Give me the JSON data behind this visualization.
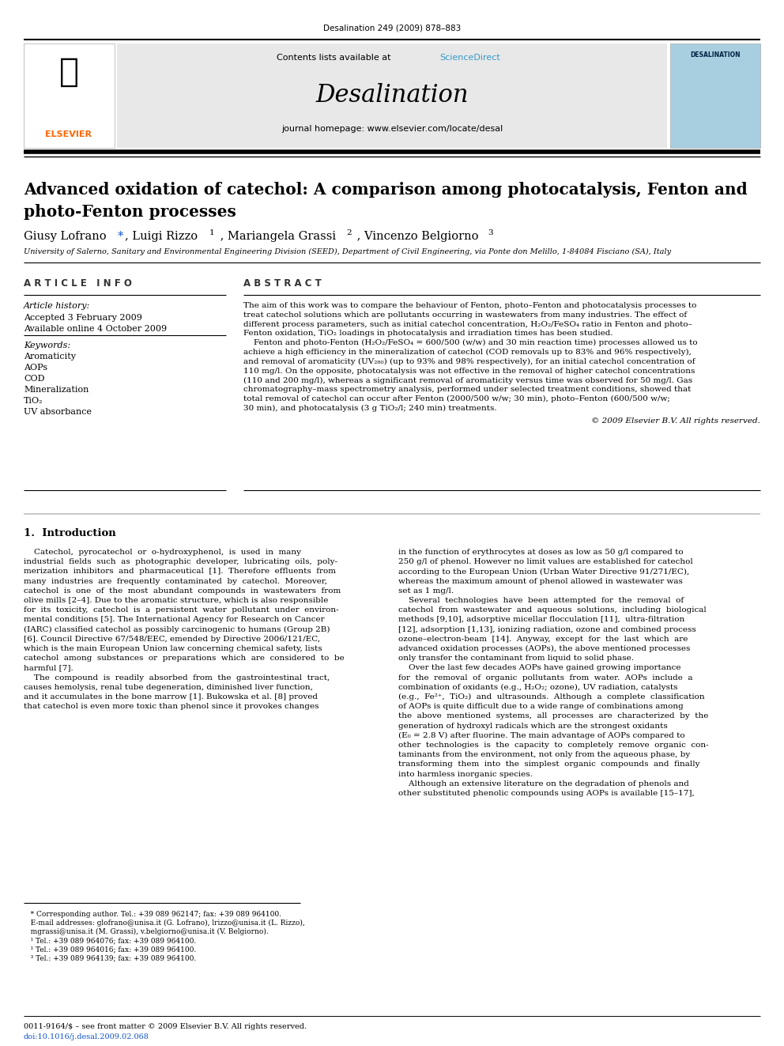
{
  "page_width": 9.92,
  "page_height": 13.23,
  "bg_color": "#ffffff",
  "journal_ref": "Desalination 249 (2009) 878–883",
  "header_bg": "#e8e8e8",
  "sciencedirect_color": "#3399cc",
  "journal_name": "Desalination",
  "journal_homepage": "journal homepage: www.elsevier.com/locate/desal",
  "title_line1": "Advanced oxidation of catechol: A comparison among photocatalysis, Fenton and",
  "title_line2": "photo-Fenton processes",
  "affiliation": "University of Salerno, Sanitary and Environmental Engineering Division (SEED), Department of Civil Engineering, via Ponte don Melillo, 1-84084 Fisciano (SA), Italy",
  "article_info_header": "A R T I C L E   I N F O",
  "abstract_header": "A B S T R A C T",
  "article_history_label": "Article history:",
  "accepted": "Accepted 3 February 2009",
  "available": "Available online 4 October 2009",
  "keywords_label": "Keywords:",
  "keywords": [
    "Aromaticity",
    "AOPs",
    "COD",
    "Mineralization",
    "TiO₂",
    "UV absorbance"
  ],
  "copyright": "© 2009 Elsevier B.V. All rights reserved.",
  "intro_header": "1.  Introduction",
  "footnote1": "   * Corresponding author. Tel.: +39 089 962147; fax: +39 089 964100.",
  "footnote2": "   E-mail addresses: glofrano@unisa.it (G. Lofrano), lrizzo@unisa.it (L. Rizzo),",
  "footnote2b": "   mgrassi@unisa.it (M. Grassi), v.belgiorno@unisa.it (V. Belgiorno).",
  "footnote3": "   ¹ Tel.: +39 089 964076; fax: +39 089 964100.",
  "footnote4": "   ¹ Tel.: +39 089 964016; fax: +39 089 964100.",
  "footnote5": "   ³ Tel.: +39 089 964139; fax: +39 089 964100.",
  "bottom_line1": "0011-9164/$ – see front matter © 2009 Elsevier B.V. All rights reserved.",
  "bottom_line2": "doi:10.1016/j.desal.2009.02.068",
  "elsevier_color": "#FF6600",
  "abstract_lines": [
    "The aim of this work was to compare the behaviour of Fenton, photo–Fenton and photocatalysis processes to",
    "treat catechol solutions which are pollutants occurring in wastewaters from many industries. The effect of",
    "different process parameters, such as initial catechol concentration, H₂O₂/FeSO₄ ratio in Fenton and photo–",
    "Fenton oxidation, TiO₂ loadings in photocatalysis and irradiation times has been studied.",
    "    Fenton and photo-Fenton (H₂O₂/FeSO₄ = 600/500 (w/w) and 30 min reaction time) processes allowed us to",
    "achieve a high efficiency in the mineralization of catechol (COD removals up to 83% and 96% respectively),",
    "and removal of aromaticity (UV₂₈₀) (up to 93% and 98% respectively), for an initial catechol concentration of",
    "110 mg/l. On the opposite, photocatalysis was not effective in the removal of higher catechol concentrations",
    "(110 and 200 mg/l), whereas a significant removal of aromaticity versus time was observed for 50 mg/l. Gas",
    "chromatography–mass spectrometry analysis, performed under selected treatment conditions, showed that",
    "total removal of catechol can occur after Fenton (2000/500 w/w; 30 min), photo–Fenton (600/500 w/w;",
    "30 min), and photocatalysis (3 g TiO₂/l; 240 min) treatments."
  ],
  "intro_left_lines": [
    "    Catechol,  pyrocatechol  or  o-hydroxyphenol,  is  used  in  many",
    "industrial  fields  such  as  photographic  developer,  lubricating  oils,  poly-",
    "merization  inhibitors  and  pharmaceutical  [1].  Therefore  effluents  from",
    "many  industries  are  frequently  contaminated  by  catechol.  Moreover,",
    "catechol  is  one  of  the  most  abundant  compounds  in  wastewaters  from",
    "olive mills [2–4]. Due to the aromatic structure, which is also responsible",
    "for  its  toxicity,  catechol  is  a  persistent  water  pollutant  under  environ-",
    "mental conditions [5]. The International Agency for Research on Cancer",
    "(IARC) classified catechol as possibly carcinogenic to humans (Group 2B)",
    "[6]. Council Directive 67/548/EEC, emended by Directive 2006/121/EC,",
    "which is the main European Union law concerning chemical safety, lists",
    "catechol  among  substances  or  preparations  which  are  considered  to  be",
    "harmful [7].",
    "    The  compound  is  readily  absorbed  from  the  gastrointestinal  tract,",
    "causes hemolysis, renal tube degeneration, diminished liver function,",
    "and it accumulates in the bone marrow [1]. Bukowska et al. [8] proved",
    "that catechol is even more toxic than phenol since it provokes changes"
  ],
  "intro_right_lines": [
    "in the function of erythrocytes at doses as low as 50 g/l compared to",
    "250 g/l of phenol. However no limit values are established for catechol",
    "according to the European Union (Urban Water Directive 91/271/EC),",
    "whereas the maximum amount of phenol allowed in wastewater was",
    "set as 1 mg/l.",
    "    Several  technologies  have  been  attempted  for  the  removal  of",
    "catechol  from  wastewater  and  aqueous  solutions,  including  biological",
    "methods [9,10], adsorptive micellar flocculation [11],  ultra-filtration",
    "[12], adsorption [1,13], ionizing radiation, ozone and combined process",
    "ozone–electron-beam  [14].  Anyway,  except  for  the  last  which  are",
    "advanced oxidation processes (AOPs), the above mentioned processes",
    "only transfer the contaminant from liquid to solid phase.",
    "    Over the last few decades AOPs have gained growing importance",
    "for  the  removal  of  organic  pollutants  from  water.  AOPs  include  a",
    "combination of oxidants (e.g., H₂O₂; ozone), UV radiation, catalysts",
    "(e.g.,  Fe²⁺,  TiO₂)  and  ultrasounds.  Although  a  complete  classification",
    "of AOPs is quite difficult due to a wide range of combinations among",
    "the  above  mentioned  systems,  all  processes  are  characterized  by  the",
    "generation of hydroxyl radicals which are the strongest oxidants",
    "(E₀ = 2.8 V) after fluorine. The main advantage of AOPs compared to",
    "other  technologies  is  the  capacity  to  completely  remove  organic  con-",
    "taminants from the environment, not only from the aqueous phase, by",
    "transforming  them  into  the  simplest  organic  compounds  and  finally",
    "into harmless inorganic species.",
    "    Although an extensive literature on the degradation of phenols and",
    "other substituted phenolic compounds using AOPs is available [15–17],"
  ]
}
